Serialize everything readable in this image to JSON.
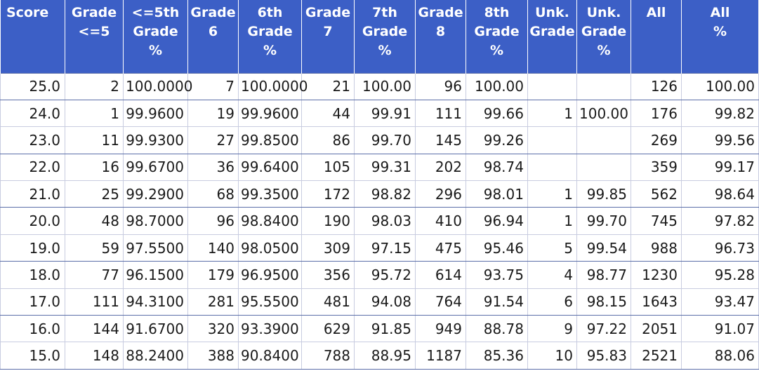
{
  "headers": [
    "Score",
    "Grade\n<=5",
    "<=5th\nGrade\n%",
    "Grade\n6",
    "6th\nGrade\n%",
    "Grade\n7",
    "7th\nGrade\n%",
    "Grade\n8",
    "8th\nGrade\n%",
    "Unk.\nGrade",
    "Unk.\nGrade\n%",
    "All",
    "All\n%"
  ],
  "rows": [
    [
      "25.0",
      "2",
      "100.0000",
      "7",
      "100.0000",
      "21",
      "100.00",
      "96",
      "100.00",
      "",
      "",
      "126",
      "100.00"
    ],
    [
      "24.0",
      "1",
      "99.9600",
      "19",
      "99.9600",
      "44",
      "99.91",
      "111",
      "99.66",
      "1",
      "100.00",
      "176",
      "99.82"
    ],
    [
      "23.0",
      "11",
      "99.9300",
      "27",
      "99.8500",
      "86",
      "99.70",
      "145",
      "99.26",
      "",
      "",
      "269",
      "99.56"
    ],
    [
      "22.0",
      "16",
      "99.6700",
      "36",
      "99.6400",
      "105",
      "99.31",
      "202",
      "98.74",
      "",
      "",
      "359",
      "99.17"
    ],
    [
      "21.0",
      "25",
      "99.2900",
      "68",
      "99.3500",
      "172",
      "98.82",
      "296",
      "98.01",
      "1",
      "99.85",
      "562",
      "98.64"
    ],
    [
      "20.0",
      "48",
      "98.7000",
      "96",
      "98.8400",
      "190",
      "98.03",
      "410",
      "96.94",
      "1",
      "99.70",
      "745",
      "97.82"
    ],
    [
      "19.0",
      "59",
      "97.5500",
      "140",
      "98.0500",
      "309",
      "97.15",
      "475",
      "95.46",
      "5",
      "99.54",
      "988",
      "96.73"
    ],
    [
      "18.0",
      "77",
      "96.1500",
      "179",
      "96.9500",
      "356",
      "95.72",
      "614",
      "93.75",
      "4",
      "98.77",
      "1230",
      "95.28"
    ],
    [
      "17.0",
      "111",
      "94.3100",
      "281",
      "95.5500",
      "481",
      "94.08",
      "764",
      "91.54",
      "6",
      "98.15",
      "1643",
      "93.47"
    ],
    [
      "16.0",
      "144",
      "91.6700",
      "320",
      "93.3900",
      "629",
      "91.85",
      "949",
      "88.78",
      "9",
      "97.22",
      "2051",
      "91.07"
    ],
    [
      "15.0",
      "148",
      "88.2400",
      "388",
      "90.8400",
      "788",
      "88.95",
      "1187",
      "85.36",
      "10",
      "95.83",
      "2521",
      "88.06"
    ]
  ],
  "colors": {
    "header_bg": "#3c5fc6",
    "header_text": "#ffffff",
    "row_rule": "#5b6ea8"
  }
}
